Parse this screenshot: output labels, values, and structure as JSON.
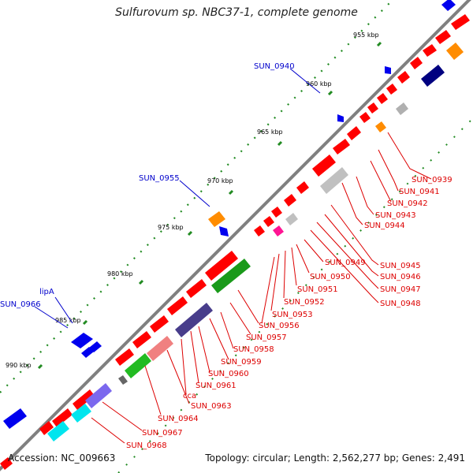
{
  "title": "Sulfurovum sp. NBC37-1, complete genome",
  "footer": {
    "accession": "Accession: NC_009663",
    "summary": "Topology: circular; Length: 2,562,277 bp; Genes: 2,491"
  },
  "ticks": [
    {
      "label": "955 kbp"
    },
    {
      "label": "960 kbp"
    },
    {
      "label": "965 kbp"
    },
    {
      "label": "970 kbp"
    },
    {
      "label": "975 kbp"
    },
    {
      "label": "980 kbp"
    },
    {
      "label": "985 kbp"
    },
    {
      "label": "990 kbp"
    }
  ],
  "red_genes": [
    "SUN_0939",
    "SUN_0941",
    "SUN_0942",
    "SUN_0943",
    "SUN_0944",
    "SUN_0945",
    "SUN_0946",
    "SUN_0947",
    "SUN_0948",
    "SUN_0949",
    "SUN_0950",
    "SUN_0951",
    "SUN_0952",
    "SUN_0953",
    "SUN_0956",
    "SUN_0957",
    "SUN_0958",
    "SUN_0959",
    "SUN_0960",
    "SUN_0961",
    "cca",
    "SUN_0963",
    "SUN_0964",
    "SUN_0967",
    "SUN_0968"
  ],
  "blue_genes": [
    "SUN_0940",
    "SUN_0955",
    "lipA",
    "SUN_0966"
  ],
  "colors": {
    "reverse_strand": "#ff0000",
    "forward_strand": "#0000ff",
    "backbone": "#808080",
    "ticks": "#228b22",
    "gc_green": "#1a9a1a",
    "purple": "#6a5acd",
    "cyan": "#00e5ee",
    "orange": "#ff8c00",
    "magenta": "#ff1493",
    "navy": "#000080",
    "grey_box": "#c0c0c0"
  }
}
